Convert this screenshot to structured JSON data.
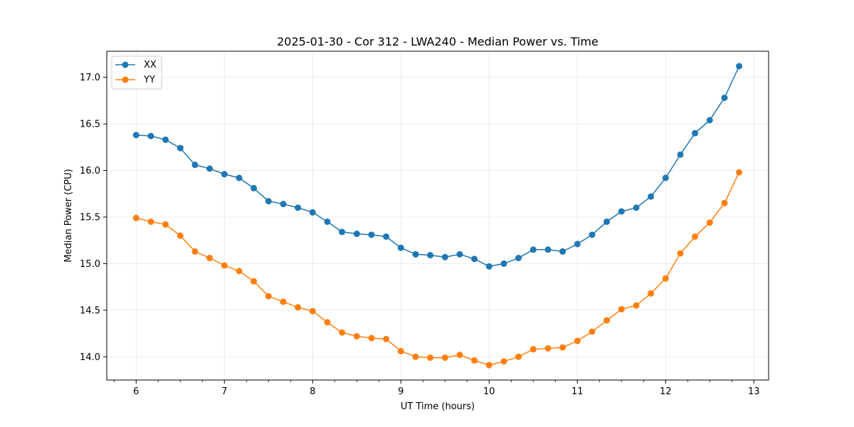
{
  "chart_data": {
    "type": "line",
    "title": "2025-01-30 - Cor 312 - LWA240 - Median Power vs. Time",
    "xlabel": "UT Time (hours)",
    "ylabel": "Median Power (CPU)",
    "xlim": [
      5.667,
      13.167
    ],
    "ylim": [
      13.75,
      17.28
    ],
    "xticks": [
      6,
      7,
      8,
      9,
      10,
      11,
      12,
      13
    ],
    "xtick_labels": [
      "6",
      "7",
      "8",
      "9",
      "10",
      "11",
      "12",
      "13"
    ],
    "yticks": [
      14.0,
      14.5,
      15.0,
      15.5,
      16.0,
      16.5,
      17.0
    ],
    "ytick_labels": [
      "14.0",
      "14.5",
      "15.0",
      "15.5",
      "16.0",
      "16.5",
      "17.0"
    ],
    "grid": true,
    "legend_position": "top-left",
    "x": [
      6.0,
      6.167,
      6.333,
      6.5,
      6.667,
      6.833,
      7.0,
      7.167,
      7.333,
      7.5,
      7.667,
      7.833,
      8.0,
      8.167,
      8.333,
      8.5,
      8.667,
      8.833,
      9.0,
      9.167,
      9.333,
      9.5,
      9.667,
      9.833,
      10.0,
      10.167,
      10.333,
      10.5,
      10.667,
      10.833,
      11.0,
      11.167,
      11.333,
      11.5,
      11.667,
      11.833,
      12.0,
      12.167,
      12.333,
      12.5,
      12.667,
      12.833
    ],
    "series": [
      {
        "name": "XX",
        "color": "#1f77b4",
        "values": [
          16.38,
          16.37,
          16.33,
          16.24,
          16.06,
          16.02,
          15.96,
          15.92,
          15.81,
          15.67,
          15.64,
          15.6,
          15.55,
          15.45,
          15.34,
          15.32,
          15.31,
          15.29,
          15.17,
          15.1,
          15.09,
          15.07,
          15.1,
          15.05,
          14.97,
          15.0,
          15.06,
          15.15,
          15.15,
          15.13,
          15.21,
          15.31,
          15.45,
          15.56,
          15.6,
          15.72,
          15.92,
          16.17,
          16.4,
          16.54,
          16.78,
          17.12
        ]
      },
      {
        "name": "YY",
        "color": "#ff7f0e",
        "values": [
          15.49,
          15.45,
          15.42,
          15.3,
          15.13,
          15.06,
          14.98,
          14.92,
          14.81,
          14.65,
          14.59,
          14.53,
          14.49,
          14.37,
          14.26,
          14.22,
          14.2,
          14.19,
          14.06,
          14.0,
          13.99,
          13.99,
          14.02,
          13.96,
          13.91,
          13.95,
          14.0,
          14.08,
          14.09,
          14.1,
          14.17,
          14.27,
          14.39,
          14.51,
          14.55,
          14.68,
          14.84,
          15.11,
          15.29,
          15.44,
          15.65,
          15.98
        ]
      }
    ]
  }
}
